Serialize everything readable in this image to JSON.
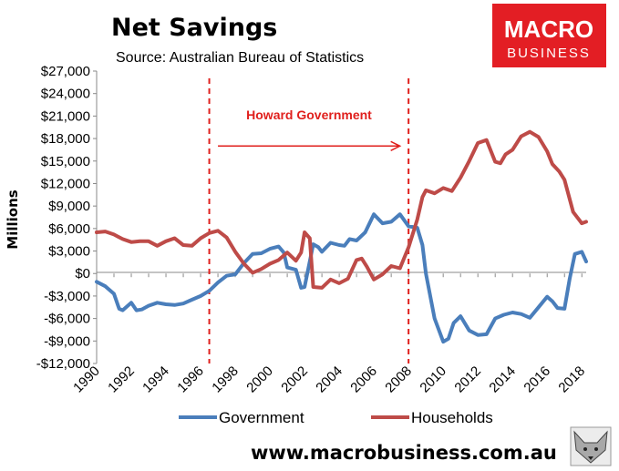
{
  "chart_data": {
    "type": "line",
    "title": "Net Savings",
    "subtitle": "Source: Australian Bureau of Statistics",
    "ylabel": "Millions",
    "xlabel": "",
    "xlim": [
      1990,
      2018.25
    ],
    "ylim": [
      -12000,
      27000
    ],
    "y_ticks": [
      {
        "value": -12000,
        "label": "-$12,000"
      },
      {
        "value": -9000,
        "label": "-$9,000"
      },
      {
        "value": -6000,
        "label": "-$6,000"
      },
      {
        "value": -3000,
        "label": "-$3,000"
      },
      {
        "value": 0,
        "label": "$0"
      },
      {
        "value": 3000,
        "label": "$3,000"
      },
      {
        "value": 6000,
        "label": "$6,000"
      },
      {
        "value": 9000,
        "label": "$9,000"
      },
      {
        "value": 12000,
        "label": "$12,000"
      },
      {
        "value": 15000,
        "label": "$15,000"
      },
      {
        "value": 18000,
        "label": "$18,000"
      },
      {
        "value": 21000,
        "label": "$21,000"
      },
      {
        "value": 24000,
        "label": "$24,000"
      },
      {
        "value": 27000,
        "label": "$27,000"
      }
    ],
    "x_ticks": [
      {
        "value": 1990,
        "label": "1990"
      },
      {
        "value": 1992,
        "label": "1992"
      },
      {
        "value": 1994,
        "label": "1994"
      },
      {
        "value": 1996,
        "label": "1996"
      },
      {
        "value": 1998,
        "label": "1998"
      },
      {
        "value": 2000,
        "label": "2000"
      },
      {
        "value": 2002,
        "label": "2002"
      },
      {
        "value": 2004,
        "label": "2004"
      },
      {
        "value": 2006,
        "label": "2006"
      },
      {
        "value": 2008,
        "label": "2008"
      },
      {
        "value": 2010,
        "label": "2010"
      },
      {
        "value": 2012,
        "label": "2012"
      },
      {
        "value": 2014,
        "label": "2014"
      },
      {
        "value": 2016,
        "label": "2016"
      },
      {
        "value": 2018,
        "label": "2018"
      }
    ],
    "grid": false,
    "legend": "bottom",
    "series": [
      {
        "name": "Government",
        "color": "#4a7ebb",
        "points": [
          [
            1990.0,
            -1100
          ],
          [
            1990.5,
            -1700
          ],
          [
            1991.0,
            -2700
          ],
          [
            1991.3,
            -4700
          ],
          [
            1991.5,
            -4900
          ],
          [
            1992.0,
            -3900
          ],
          [
            1992.3,
            -4900
          ],
          [
            1992.6,
            -4800
          ],
          [
            1993.0,
            -4300
          ],
          [
            1993.5,
            -3900
          ],
          [
            1994.0,
            -4100
          ],
          [
            1994.5,
            -4200
          ],
          [
            1995.0,
            -4000
          ],
          [
            1995.5,
            -3500
          ],
          [
            1996.0,
            -3000
          ],
          [
            1996.5,
            -2300
          ],
          [
            1997.0,
            -1200
          ],
          [
            1997.5,
            -300
          ],
          [
            1998.0,
            -100
          ],
          [
            1998.5,
            1400
          ],
          [
            1999.0,
            2600
          ],
          [
            1999.5,
            2700
          ],
          [
            2000.0,
            3300
          ],
          [
            2000.5,
            3600
          ],
          [
            2000.8,
            2800
          ],
          [
            2001.0,
            800
          ],
          [
            2001.5,
            500
          ],
          [
            2001.8,
            -1900
          ],
          [
            2002.0,
            -1800
          ],
          [
            2002.5,
            3900
          ],
          [
            2002.8,
            3500
          ],
          [
            2003.0,
            2900
          ],
          [
            2003.5,
            4100
          ],
          [
            2004.0,
            3800
          ],
          [
            2004.3,
            3700
          ],
          [
            2004.6,
            4600
          ],
          [
            2005.0,
            4400
          ],
          [
            2005.5,
            5500
          ],
          [
            2006.0,
            7900
          ],
          [
            2006.5,
            6700
          ],
          [
            2007.0,
            6900
          ],
          [
            2007.5,
            7900
          ],
          [
            2008.0,
            6300
          ],
          [
            2008.5,
            6100
          ],
          [
            2008.8,
            3800
          ],
          [
            2009.0,
            0
          ],
          [
            2009.5,
            -6000
          ],
          [
            2010.0,
            -9100
          ],
          [
            2010.3,
            -8700
          ],
          [
            2010.6,
            -6600
          ],
          [
            2011.0,
            -5700
          ],
          [
            2011.5,
            -7600
          ],
          [
            2012.0,
            -8200
          ],
          [
            2012.5,
            -8100
          ],
          [
            2013.0,
            -6000
          ],
          [
            2013.5,
            -5500
          ],
          [
            2014.0,
            -5200
          ],
          [
            2014.5,
            -5400
          ],
          [
            2015.0,
            -5900
          ],
          [
            2015.5,
            -4500
          ],
          [
            2016.0,
            -3100
          ],
          [
            2016.3,
            -3700
          ],
          [
            2016.6,
            -4600
          ],
          [
            2017.0,
            -4700
          ],
          [
            2017.3,
            -700
          ],
          [
            2017.6,
            2600
          ],
          [
            2018.0,
            2900
          ],
          [
            2018.25,
            1600
          ]
        ]
      },
      {
        "name": "Households",
        "color": "#be4b48",
        "points": [
          [
            1990.0,
            5500
          ],
          [
            1990.5,
            5600
          ],
          [
            1991.0,
            5200
          ],
          [
            1991.5,
            4600
          ],
          [
            1992.0,
            4200
          ],
          [
            1992.5,
            4300
          ],
          [
            1993.0,
            4300
          ],
          [
            1993.5,
            3700
          ],
          [
            1994.0,
            4300
          ],
          [
            1994.5,
            4700
          ],
          [
            1995.0,
            3800
          ],
          [
            1995.5,
            3700
          ],
          [
            1996.0,
            4700
          ],
          [
            1996.5,
            5400
          ],
          [
            1997.0,
            5700
          ],
          [
            1997.5,
            4800
          ],
          [
            1998.0,
            2900
          ],
          [
            1998.5,
            1300
          ],
          [
            1999.0,
            100
          ],
          [
            1999.5,
            600
          ],
          [
            2000.0,
            1300
          ],
          [
            2000.5,
            1800
          ],
          [
            2001.0,
            2800
          ],
          [
            2001.5,
            1700
          ],
          [
            2001.8,
            2800
          ],
          [
            2002.0,
            5500
          ],
          [
            2002.3,
            4700
          ],
          [
            2002.5,
            -1800
          ],
          [
            2003.0,
            -1900
          ],
          [
            2003.5,
            -800
          ],
          [
            2004.0,
            -1300
          ],
          [
            2004.5,
            -700
          ],
          [
            2005.0,
            1800
          ],
          [
            2005.3,
            2000
          ],
          [
            2005.6,
            900
          ],
          [
            2006.0,
            -800
          ],
          [
            2006.5,
            -100
          ],
          [
            2007.0,
            1000
          ],
          [
            2007.5,
            700
          ],
          [
            2008.0,
            3500
          ],
          [
            2008.5,
            7200
          ],
          [
            2008.8,
            10200
          ],
          [
            2009.0,
            11100
          ],
          [
            2009.5,
            10700
          ],
          [
            2010.0,
            11400
          ],
          [
            2010.5,
            11000
          ],
          [
            2011.0,
            12800
          ],
          [
            2011.5,
            15000
          ],
          [
            2012.0,
            17400
          ],
          [
            2012.5,
            17800
          ],
          [
            2013.0,
            14900
          ],
          [
            2013.3,
            14700
          ],
          [
            2013.6,
            15900
          ],
          [
            2014.0,
            16500
          ],
          [
            2014.5,
            18300
          ],
          [
            2015.0,
            18900
          ],
          [
            2015.5,
            18200
          ],
          [
            2016.0,
            16300
          ],
          [
            2016.3,
            14600
          ],
          [
            2016.7,
            13600
          ],
          [
            2017.0,
            12500
          ],
          [
            2017.5,
            8200
          ],
          [
            2018.0,
            6700
          ],
          [
            2018.25,
            6900
          ]
        ]
      }
    ],
    "annotations": [
      {
        "type": "vline",
        "x": 1996.5,
        "color": "#e0201d",
        "style": "dashed"
      },
      {
        "type": "vline",
        "x": 2008.0,
        "color": "#e0201d",
        "style": "dashed"
      },
      {
        "type": "arrow",
        "from_x": 1997.0,
        "to_x": 2007.5,
        "y": 17000,
        "color": "#e0201d"
      },
      {
        "type": "text",
        "text": "Howard Government",
        "color": "#e0201d"
      }
    ]
  },
  "logo": {
    "line1": "MACRO",
    "line2": "BUSINESS",
    "bg_color": "#e31e24"
  },
  "footer": {
    "url": "www.macrobusiness.com.au"
  }
}
